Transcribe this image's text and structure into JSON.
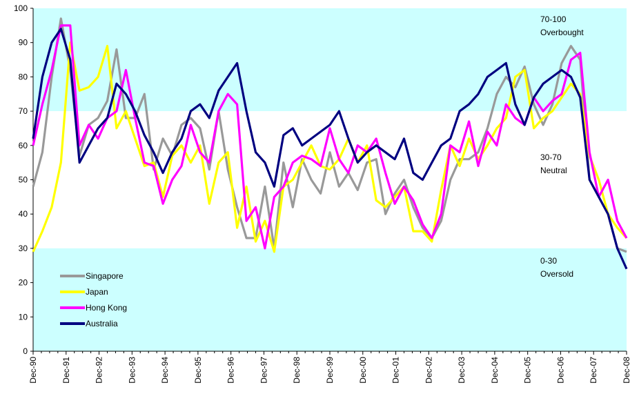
{
  "chart_data": {
    "type": "line",
    "title": "",
    "xlabel": "",
    "ylabel": "",
    "ylim": [
      0,
      100
    ],
    "yticks": [
      0,
      10,
      20,
      30,
      40,
      50,
      60,
      70,
      80,
      90,
      100
    ],
    "x_start": "Dec-90",
    "x_end": "Dec-08",
    "x_tick_labels": [
      "Dec-90",
      "Dec-91",
      "Dec-92",
      "Dec-93",
      "Dec-94",
      "Dec-95",
      "Dec-96",
      "Dec-97",
      "Dec-98",
      "Dec-99",
      "Dec-00",
      "Dec-01",
      "Dec-02",
      "Dec-03",
      "Dec-04",
      "Dec-05",
      "Dec-06",
      "Dec-07",
      "Dec-08"
    ],
    "x_step": "3 months",
    "grid": false,
    "legend_position": "bottom-left",
    "bands": [
      {
        "from": 70,
        "to": 100,
        "label_top": "70-100",
        "label_bottom": "Overbought",
        "color": "#ccffff"
      },
      {
        "from": 30,
        "to": 70,
        "label_top": "30-70",
        "label_bottom": "Neutral",
        "color": "#ffffff"
      },
      {
        "from": 0,
        "to": 30,
        "label_top": "0-30",
        "label_bottom": "Oversold",
        "color": "#ccffff"
      }
    ],
    "series": [
      {
        "name": "Singapore",
        "color": "#999999",
        "values": [
          48,
          58,
          80,
          97,
          82,
          57,
          66,
          68,
          73,
          88,
          68,
          68,
          75,
          53,
          62,
          57,
          66,
          68,
          65,
          53,
          70,
          53,
          42,
          33,
          33,
          48,
          30,
          55,
          42,
          56,
          50,
          46,
          58,
          48,
          52,
          47,
          55,
          56,
          40,
          46,
          50,
          42,
          36,
          33,
          38,
          50,
          56,
          56,
          58,
          65,
          75,
          80,
          77,
          83,
          72,
          66,
          72,
          84,
          89,
          85,
          50,
          45,
          40,
          30,
          29
        ]
      },
      {
        "name": "Japan",
        "color": "#ffff00",
        "values": [
          29,
          35,
          42,
          55,
          90,
          76,
          77,
          80,
          89,
          65,
          70,
          62,
          54,
          55,
          45,
          57,
          60,
          55,
          60,
          43,
          55,
          58,
          36,
          48,
          32,
          38,
          29,
          48,
          50,
          55,
          60,
          54,
          53,
          56,
          62,
          55,
          60,
          44,
          42,
          45,
          48,
          35,
          35,
          32,
          47,
          60,
          54,
          62,
          56,
          60,
          65,
          68,
          80,
          82,
          65,
          68,
          70,
          74,
          78,
          75,
          57,
          50,
          40,
          36,
          33
        ]
      },
      {
        "name": "Hong Kong",
        "color": "#ff00ff",
        "values": [
          60,
          72,
          82,
          95,
          95,
          60,
          66,
          62,
          68,
          70,
          82,
          68,
          55,
          54,
          43,
          50,
          54,
          66,
          58,
          55,
          70,
          75,
          72,
          38,
          42,
          30,
          45,
          48,
          55,
          57,
          56,
          54,
          65,
          56,
          52,
          60,
          58,
          62,
          52,
          43,
          48,
          44,
          37,
          33,
          40,
          60,
          58,
          67,
          54,
          64,
          60,
          72,
          68,
          66,
          74,
          70,
          73,
          75,
          85,
          87,
          58,
          45,
          50,
          38,
          33
        ]
      },
      {
        "name": "Australia",
        "color": "#000080",
        "values": [
          62,
          80,
          90,
          94,
          85,
          55,
          60,
          65,
          68,
          78,
          75,
          70,
          63,
          58,
          52,
          58,
          62,
          70,
          72,
          68,
          76,
          80,
          84,
          70,
          58,
          55,
          48,
          63,
          65,
          60,
          62,
          64,
          66,
          70,
          62,
          55,
          58,
          60,
          58,
          56,
          62,
          52,
          50,
          55,
          60,
          62,
          70,
          72,
          75,
          80,
          82,
          84,
          72,
          66,
          74,
          78,
          80,
          82,
          80,
          74,
          50,
          45,
          40,
          30,
          24
        ]
      }
    ]
  }
}
